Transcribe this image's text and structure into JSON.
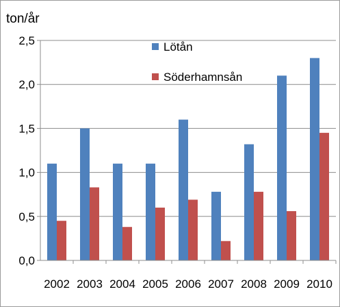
{
  "chart_data": {
    "type": "bar",
    "ylabel": "ton/år",
    "categories": [
      "2002",
      "2003",
      "2004",
      "2005",
      "2006",
      "2007",
      "2008",
      "2009",
      "2010"
    ],
    "series": [
      {
        "name": "Lötån",
        "color": "#4f81bd",
        "values": [
          1.1,
          1.5,
          1.1,
          1.1,
          1.6,
          0.78,
          1.32,
          2.1,
          2.3
        ]
      },
      {
        "name": "Söderhamnsån",
        "color": "#c0504d",
        "values": [
          0.45,
          0.83,
          0.38,
          0.6,
          0.69,
          0.22,
          0.78,
          0.56,
          1.45
        ]
      }
    ],
    "ylim": [
      0,
      2.5
    ],
    "yticks": [
      "0,0",
      "0,5",
      "1,0",
      "1,5",
      "2,0",
      "2,5"
    ],
    "grid": true,
    "legend_position": "top-center"
  }
}
